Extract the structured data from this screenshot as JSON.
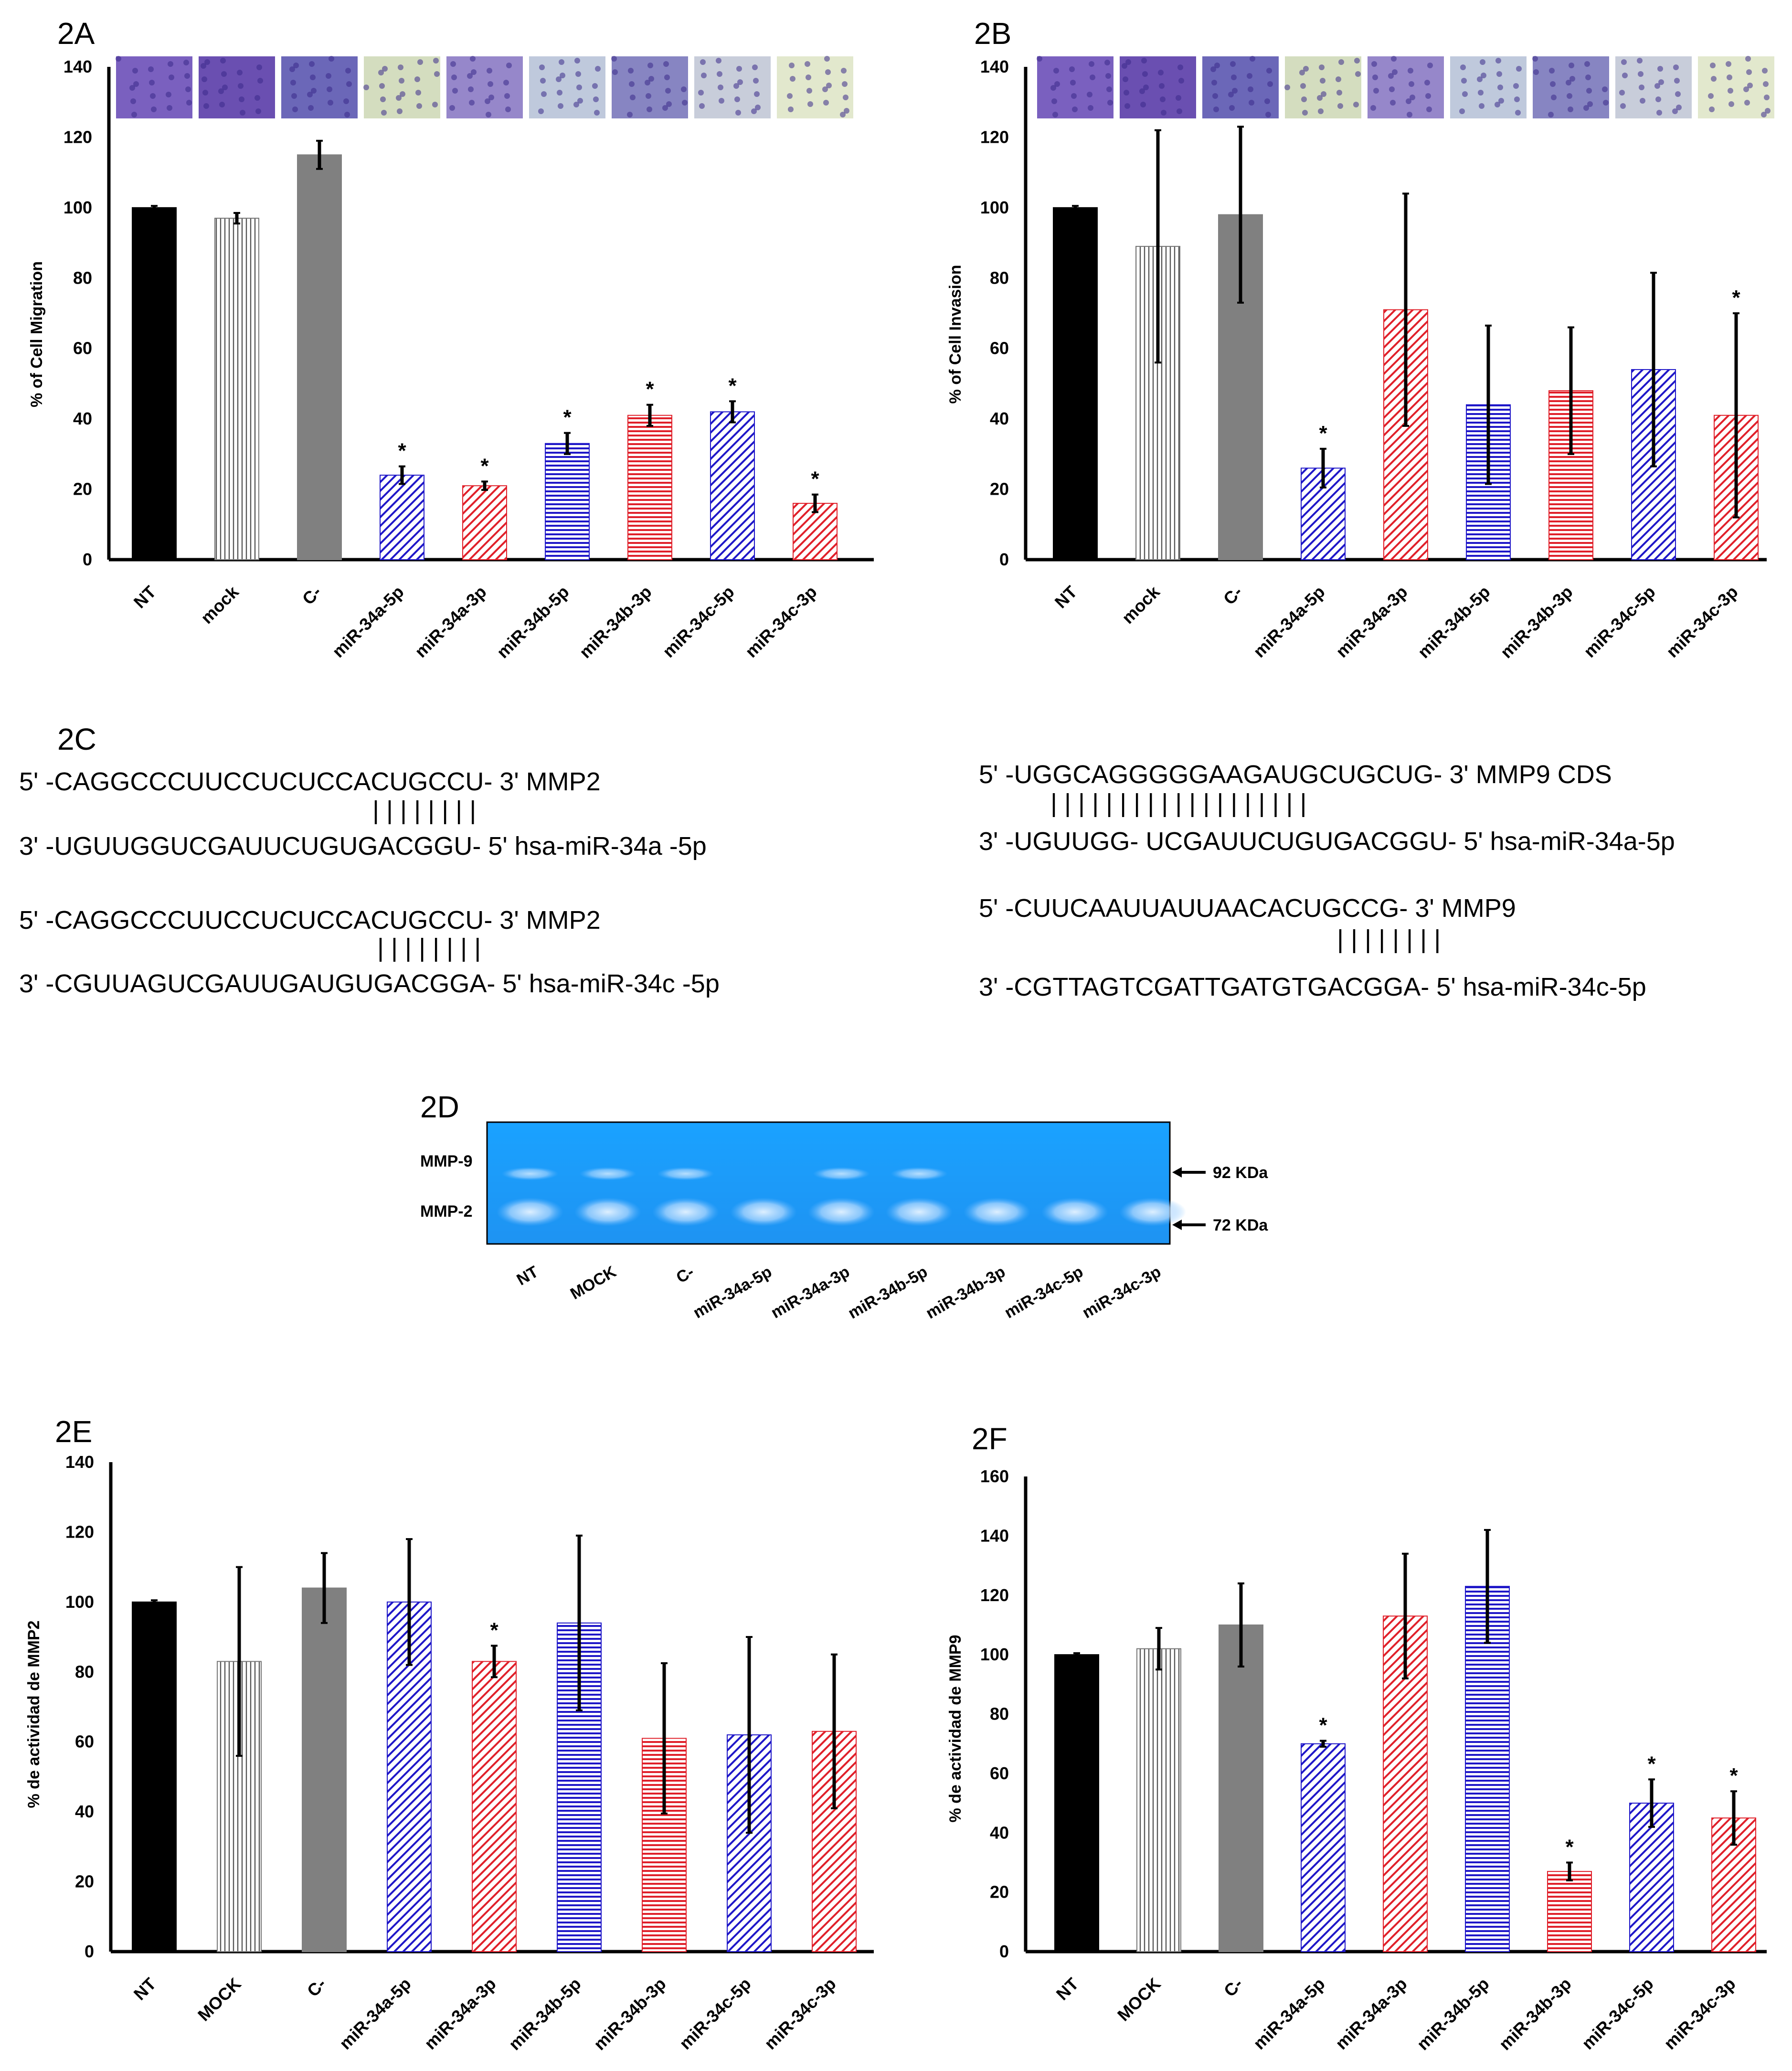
{
  "colors": {
    "blue": "#1f17c8",
    "red": "#e0202a",
    "black": "#000000",
    "gray": "#808080",
    "gel": "#1e9bff"
  },
  "chart_data": [
    {
      "id": "2A",
      "label": "2A",
      "type": "bar",
      "ylabel": "% of Cell Migration",
      "ylim": [
        0,
        140
      ],
      "yticks": [
        0,
        20,
        40,
        60,
        80,
        100,
        120,
        140
      ],
      "categories": [
        "NT",
        "mock",
        "C-",
        "miR-34a-5p",
        "miR-34a-3p",
        "miR-34b-5p",
        "miR-34b-3p",
        "miR-34c-5p",
        "miR-34c-3p"
      ],
      "values": [
        100,
        97,
        115,
        24,
        21,
        33,
        41,
        42,
        16
      ],
      "errors": [
        0.5,
        1.5,
        4,
        2.5,
        1.2,
        3,
        3,
        3,
        2.5
      ],
      "significant": [
        false,
        false,
        false,
        true,
        true,
        true,
        true,
        true,
        true
      ],
      "micrographs": true
    },
    {
      "id": "2B",
      "label": "2B",
      "type": "bar",
      "ylabel": "% of Cell Invasion",
      "ylim": [
        0,
        140
      ],
      "yticks": [
        0,
        20,
        40,
        60,
        80,
        100,
        120,
        140
      ],
      "categories": [
        "NT",
        "mock",
        "C-",
        "miR-34a-5p",
        "miR-34a-3p",
        "miR-34b-5p",
        "miR-34b-3p",
        "miR-34c-5p",
        "miR-34c-3p"
      ],
      "values": [
        100,
        89,
        98,
        26,
        71,
        44,
        48,
        54,
        41
      ],
      "errors": [
        0.5,
        33,
        25,
        5.5,
        33,
        22.5,
        18,
        27.5,
        29
      ],
      "significant": [
        false,
        false,
        false,
        true,
        false,
        false,
        false,
        false,
        true
      ],
      "micrographs": true
    },
    {
      "id": "2E",
      "label": "2E",
      "type": "bar",
      "ylabel": "% de actividad de MMP2",
      "ylim": [
        0,
        140
      ],
      "yticks": [
        0,
        20,
        40,
        60,
        80,
        100,
        120,
        140
      ],
      "categories": [
        "NT",
        "MOCK",
        "C-",
        "miR-34a-5p",
        "miR-34a-3p",
        "miR-34b-5p",
        "miR-34b-3p",
        "miR-34c-5p",
        "miR-34c-3p"
      ],
      "values": [
        100,
        83,
        104,
        100,
        83,
        94,
        61,
        62,
        63
      ],
      "errors": [
        0.5,
        27,
        10,
        18,
        4.5,
        25,
        21.5,
        28,
        22
      ],
      "significant": [
        false,
        false,
        false,
        false,
        true,
        false,
        false,
        false,
        false
      ],
      "micrographs": false
    },
    {
      "id": "2F",
      "label": "2F",
      "type": "bar",
      "ylabel": "% de actividad de MMP9",
      "ylim": [
        0,
        160
      ],
      "yticks": [
        0,
        20,
        40,
        60,
        80,
        100,
        120,
        140,
        160
      ],
      "categories": [
        "NT",
        "MOCK",
        "C-",
        "miR-34a-5p",
        "miR-34a-3p",
        "miR-34b-5p",
        "miR-34b-3p",
        "miR-34c-5p",
        "miR-34c-3p"
      ],
      "values": [
        100,
        102,
        110,
        70,
        113,
        123,
        27,
        50,
        45
      ],
      "errors": [
        0.5,
        7,
        14,
        1,
        21,
        19,
        3,
        8,
        9
      ],
      "significant": [
        false,
        false,
        false,
        true,
        false,
        false,
        true,
        true,
        true
      ],
      "micrographs": false
    }
  ],
  "panel_2C": {
    "label": "2C",
    "alignments": [
      {
        "top": "5' -CAGGCCCUUCCUCUCCACUGCCU- 3' MMP2",
        "bars": "| | | | | | | |",
        "bottom": "3'   -UGUUGGUCGAUUCUGUGACGGU- 5' hsa-miR-34a -5p"
      },
      {
        "top": "5'  -CAGGCCCUUCCUCUCCACUGCCU- 3'  MMP2",
        "bars": "| | | | | | | |",
        "bottom": "3'  -CGUUAGUCGAUUGAUGUGACGGA- 5' hsa-miR-34c -5p"
      },
      {
        "top": "5'    -UGGCAGGGGGAAGAUGCUGCUG- 3'  MMP9 CDS",
        "bars": "| | | |        | |      | | | | | | | | | | | | |",
        "bottom": "3'  -UGUUGG- UCGAUUCUGUGACGGU- 5' hsa-miR-34a-5p"
      },
      {
        "top": "5'     -CUUCAAUUAUUAACACUGCCG- 3'  MMP9",
        "bars": "| | | | | | | |",
        "bottom": "3' -CGTTAGTCGATTGATGTGACGGA- 5' hsa-miR-34c-5p"
      }
    ]
  },
  "panel_2D": {
    "label": "2D",
    "band_labels": [
      "MMP-9",
      "MMP-2"
    ],
    "size_markers": [
      "92 KDa",
      "72 KDa"
    ],
    "lanes": [
      "NT",
      "MOCK",
      "C-",
      "miR-34a-5p",
      "miR-34a-3p",
      "miR-34b-5p",
      "miR-34b-3p",
      "miR-34c-5p",
      "miR-34c-3p"
    ]
  }
}
